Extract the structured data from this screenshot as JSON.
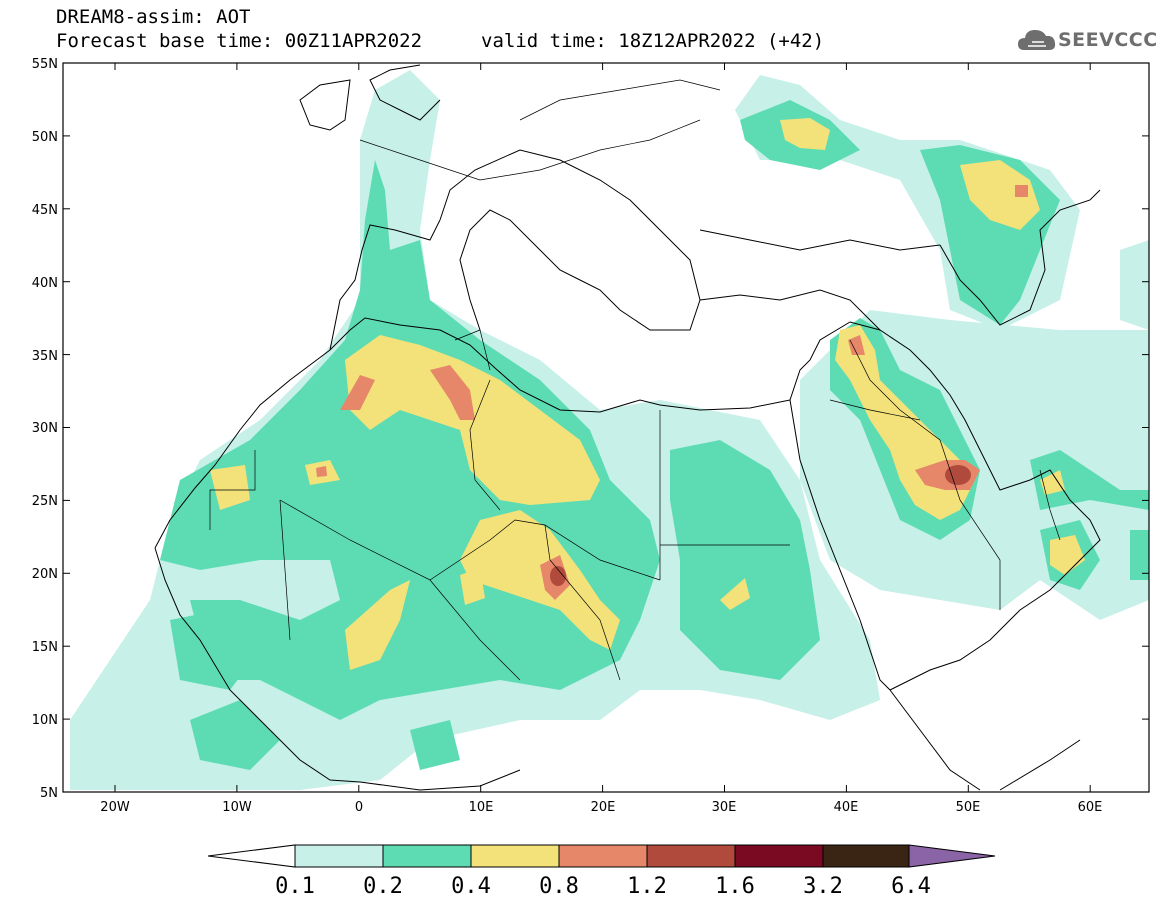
{
  "header": {
    "title_line1": "DREAM8-assim: AOT",
    "title_line2": "Forecast base time: 00Z11APR2022",
    "valid_time": "valid time: 18Z12APR2022 (+42)",
    "logo_text": "SEEVCCC"
  },
  "axes": {
    "lat_labels": [
      "55N",
      "50N",
      "45N",
      "40N",
      "35N",
      "30N",
      "25N",
      "20N",
      "15N",
      "10N",
      "5N"
    ],
    "lon_labels": [
      "20W",
      "10W",
      "0",
      "10E",
      "20E",
      "30E",
      "40E",
      "50E",
      "60E"
    ]
  },
  "colorbar": {
    "labels": [
      "0.1",
      "0.2",
      "0.4",
      "0.8",
      "1.2",
      "1.6",
      "3.2",
      "6.4"
    ],
    "colors": [
      "#c6f0e8",
      "#5ddcb4",
      "#f3e27a",
      "#e6876a",
      "#b04a3c",
      "#7a0a22",
      "#3a2414",
      "#8a64a6"
    ]
  }
}
